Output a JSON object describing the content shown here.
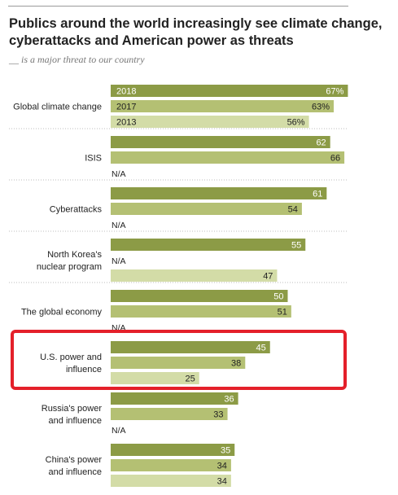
{
  "header": {
    "title": "Publics around the world increasingly see climate change, cyberattacks and American power as threats",
    "subtitle": "__ is a major threat to our country"
  },
  "colors": {
    "2018": "#8c9b46",
    "2017": "#b4c073",
    "2013": "#d3dca7",
    "highlight": "#e4202a",
    "separator": "#bdbdbd",
    "text": "#222222"
  },
  "chart_data": {
    "type": "bar",
    "orientation": "horizontal",
    "title": "Publics around the world increasingly see climate change, cyberattacks and American power as threats",
    "subtitle": "__ is a major threat to our country",
    "xlim": [
      0,
      100
    ],
    "series_years": [
      "2018",
      "2017",
      "2013"
    ],
    "groups": [
      {
        "category": "Global climate change",
        "values": {
          "2018": 67,
          "2017": 63,
          "2013": 56
        },
        "percent_labels": true,
        "year_labels": true
      },
      {
        "category": "ISIS",
        "values": {
          "2018": 62,
          "2017": 66,
          "2013": null
        }
      },
      {
        "category": "Cyberattacks",
        "values": {
          "2018": 61,
          "2017": 54,
          "2013": null
        }
      },
      {
        "category": "North Korea's nuclear program",
        "values": {
          "2018": 55,
          "2017": null,
          "2013": 47
        }
      },
      {
        "category": "The global economy",
        "values": {
          "2018": 50,
          "2017": 51,
          "2013": null
        }
      },
      {
        "category": "U.S. power and influence",
        "values": {
          "2018": 45,
          "2017": 38,
          "2013": 25
        },
        "highlighted": true
      },
      {
        "category": "Russia's power and influence",
        "values": {
          "2018": 36,
          "2017": 33,
          "2013": null
        }
      },
      {
        "category": "China's power and influence",
        "values": {
          "2018": 35,
          "2017": 34,
          "2013": 34
        }
      }
    ],
    "missing_label": "N/A"
  }
}
